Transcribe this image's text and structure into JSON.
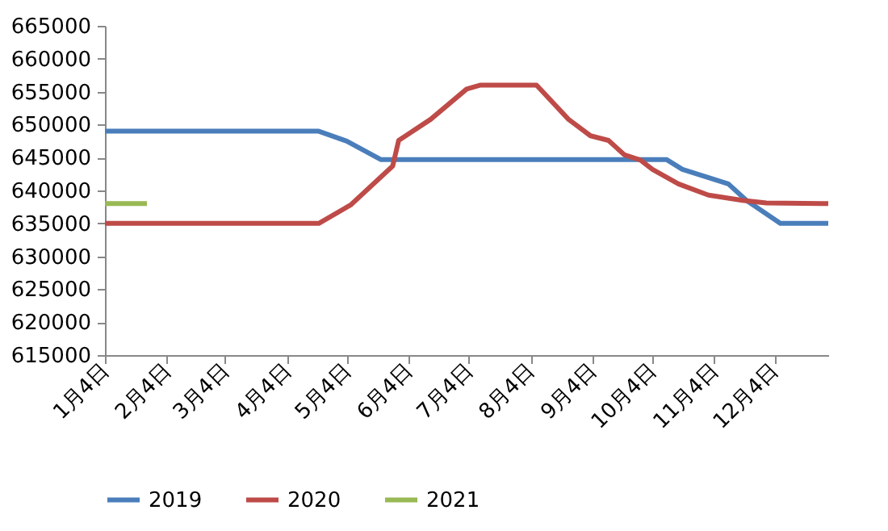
{
  "chart_data": {
    "type": "line",
    "x": [
      "--01-04",
      "--04-20",
      "--05-04",
      "--05-21",
      "--10-11",
      "--10-19",
      "--11-11",
      "--11-20",
      "--12-07",
      "--12-31"
    ],
    "xlim": [
      "--01-04",
      "--12-31"
    ],
    "xticks": [
      {
        "value": "--01-04",
        "label": "1月4日"
      },
      {
        "value": "--02-04",
        "label": "2月4日"
      },
      {
        "value": "--03-04",
        "label": "3月4日"
      },
      {
        "value": "--04-04",
        "label": "4月4日"
      },
      {
        "value": "--05-04",
        "label": "5月4日"
      },
      {
        "value": "--06-04",
        "label": "6月4日"
      },
      {
        "value": "--07-04",
        "label": "7月4日"
      },
      {
        "value": "--08-04",
        "label": "8月4日"
      },
      {
        "value": "--09-04",
        "label": "9月4日"
      },
      {
        "value": "--10-04",
        "label": "10月4日"
      },
      {
        "value": "--11-04",
        "label": "11月4日"
      },
      {
        "value": "--12-04",
        "label": "12月4日"
      }
    ],
    "ylim": [
      615000,
      665000
    ],
    "yticks": [
      615000,
      620000,
      625000,
      630000,
      635000,
      640000,
      645000,
      650000,
      655000,
      660000,
      665000
    ],
    "series": [
      {
        "name": "2019",
        "color": "#4a7ebb",
        "values": [
          649000,
          649000,
          647500,
          644700,
          644700,
          643200,
          641000,
          638500,
          635000,
          635000
        ]
      },
      {
        "name": "2020",
        "color": "#be4b48",
        "x": [
          "--01-04",
          "--04-20",
          "--05-06",
          "--05-27",
          "--05-30",
          "--06-15",
          "--07-03",
          "--07-10",
          "--08-07",
          "--08-23",
          "--09-03",
          "--09-12",
          "--09-20",
          "--09-28",
          "--10-04",
          "--10-17",
          "--11-01",
          "--11-18",
          "--11-30",
          "--12-31"
        ],
        "values": [
          635000,
          635000,
          637800,
          643700,
          647600,
          650800,
          655400,
          656000,
          656000,
          650800,
          648300,
          647600,
          645400,
          644600,
          643200,
          641000,
          639300,
          638500,
          638100,
          638000
        ]
      },
      {
        "name": "2021",
        "color": "#98b954",
        "x": [
          "--01-04",
          "--01-25"
        ],
        "values": [
          638000,
          638000
        ]
      }
    ],
    "legend": "bottom",
    "grid": false
  }
}
